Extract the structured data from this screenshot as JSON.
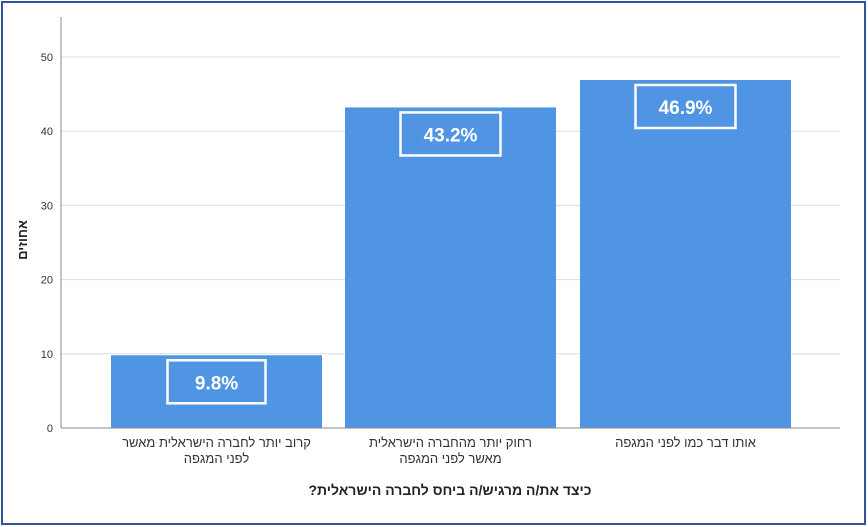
{
  "chart_data": {
    "type": "bar",
    "categories": [
      [
        "קרוב יותר לחברה הישראלית מאשר",
        "לפני המגפה"
      ],
      [
        "רחוק יותר מהחברה הישראלית",
        "מאשר לפני המגפה"
      ],
      [
        "אותו דבר כמו לפני המגפה"
      ]
    ],
    "values": [
      9.8,
      43.2,
      46.9
    ],
    "data_labels": [
      "9.8%",
      "43.2%",
      "46.9%"
    ],
    "xlabel": "כיצד את/ה מרגיש/ה ביחס לחברה הישראלית?",
    "ylabel": "אחוזים",
    "yticks": [
      0,
      10,
      20,
      30,
      40,
      50
    ],
    "ylim": [
      0,
      55
    ],
    "grid": true,
    "bar_color": "#5094e4",
    "frame_color": "#2f5597"
  }
}
